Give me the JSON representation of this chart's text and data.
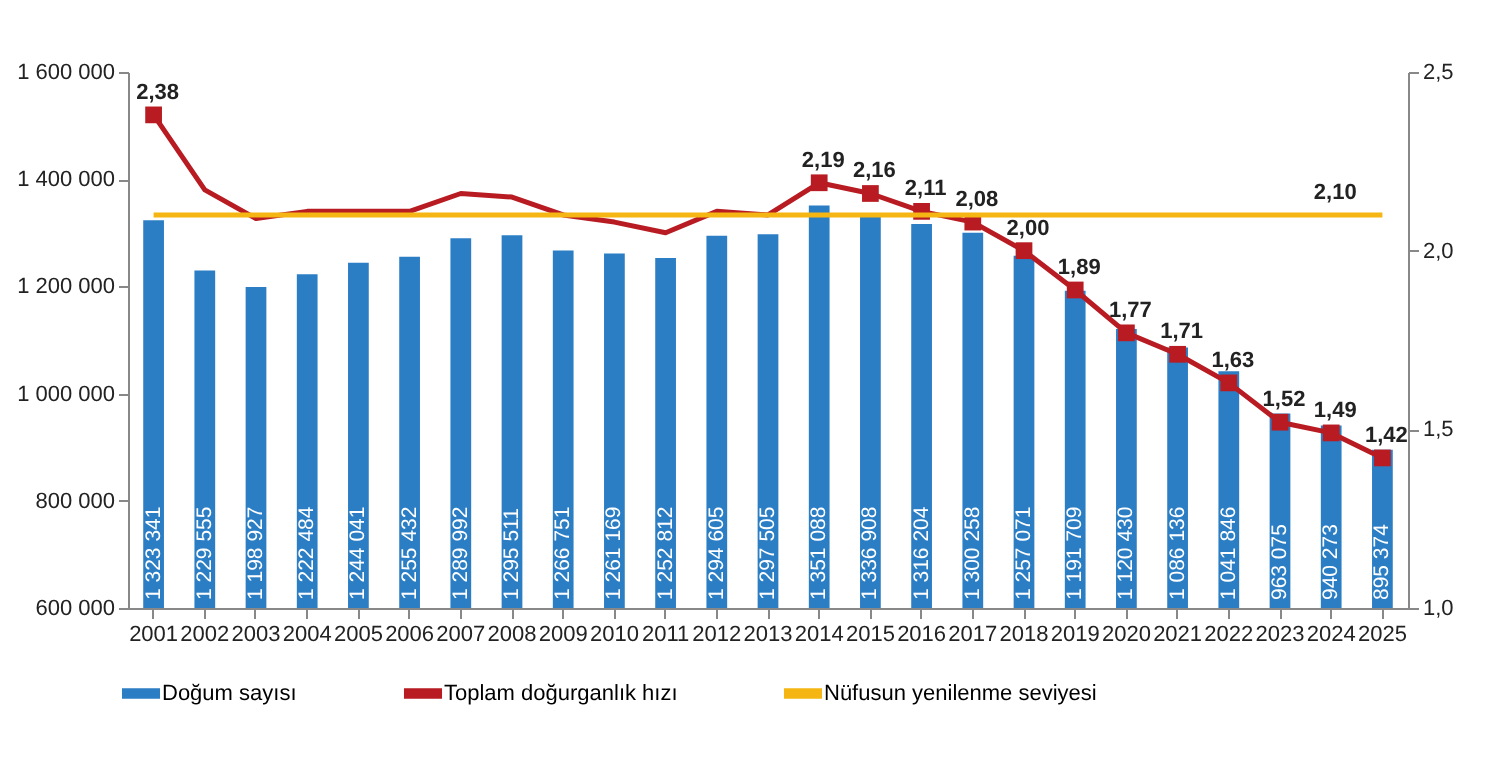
{
  "chart_data": {
    "type": "bar",
    "categories": [
      "2001",
      "2002",
      "2003",
      "2004",
      "2005",
      "2006",
      "2007",
      "2008",
      "2009",
      "2010",
      "2011",
      "2012",
      "2013",
      "2014",
      "2015",
      "2016",
      "2017",
      "2018",
      "2019",
      "2020",
      "2021",
      "2022",
      "2023",
      "2024",
      "2025"
    ],
    "series": [
      {
        "name": "Doğum sayısı",
        "color": "#2b7ec4",
        "values": [
          1323341,
          1229555,
          1198927,
          1222484,
          1244041,
          1255432,
          1289992,
          1295511,
          1266751,
          1261169,
          1252812,
          1294605,
          1297505,
          1351088,
          1336908,
          1316204,
          1300258,
          1257071,
          1191709,
          1120430,
          1086136,
          1041846,
          963075,
          940273,
          895374
        ],
        "value_labels": [
          "1 323 341",
          "1 229 555",
          "1 198 927",
          "1 222 484",
          "1 244 041",
          "1 255 432",
          "1 289 992",
          "1 295 511",
          "1 266 751",
          "1 261 169",
          "1 252 812",
          "1 294 605",
          "1 297 505",
          "1 351 088",
          "1 336 908",
          "1 316 204",
          "1 300 258",
          "1 257 071",
          "1 191 709",
          "1 120 430",
          "1 086 136",
          "1 041 846",
          "963 075",
          "940 273",
          "895 374"
        ]
      },
      {
        "name": "Toplam doğurganlık hızı",
        "type": "line",
        "axis": "y2",
        "marker": "square",
        "color": "#b81c22",
        "values": [
          2.38,
          2.17,
          2.09,
          2.11,
          2.11,
          2.11,
          2.16,
          2.15,
          2.1,
          2.08,
          2.05,
          2.11,
          2.1,
          2.19,
          2.16,
          2.11,
          2.08,
          2.0,
          1.89,
          1.77,
          1.71,
          1.63,
          1.52,
          1.49,
          1.42
        ],
        "value_labels": [
          "2,38",
          null,
          null,
          null,
          null,
          null,
          null,
          null,
          null,
          null,
          null,
          null,
          null,
          "2,19",
          "2,16",
          "2,11",
          "2,08",
          "2,00",
          "1,89",
          "1,77",
          "1,71",
          "1,63",
          "1,52",
          "1,49",
          "1,42"
        ]
      },
      {
        "name": "Nüfusun yenilenme seviyesi",
        "type": "line",
        "axis": "y2",
        "color": "#f5b614",
        "values": [
          2.1,
          2.1,
          2.1,
          2.1,
          2.1,
          2.1,
          2.1,
          2.1,
          2.1,
          2.1,
          2.1,
          2.1,
          2.1,
          2.1,
          2.1,
          2.1,
          2.1,
          2.1,
          2.1,
          2.1,
          2.1,
          2.1,
          2.1,
          2.1,
          2.1
        ],
        "value_labels": [
          null,
          null,
          null,
          null,
          null,
          null,
          null,
          null,
          null,
          null,
          null,
          null,
          null,
          null,
          null,
          null,
          null,
          null,
          null,
          null,
          null,
          null,
          null,
          "2,10",
          null
        ]
      }
    ],
    "ylim": [
      600000,
      1600000
    ],
    "yticks": [
      {
        "value": 600000,
        "label": "600 000"
      },
      {
        "value": 800000,
        "label": "800 000"
      },
      {
        "value": 1000000,
        "label": "1 000 000"
      },
      {
        "value": 1200000,
        "label": "1 200 000"
      },
      {
        "value": 1400000,
        "label": "1 400 000"
      },
      {
        "value": 1600000,
        "label": "1 600 000"
      }
    ],
    "y2lim": [
      1.0,
      2.5
    ],
    "y2ticks": [
      {
        "value": 1.0,
        "label": "1,0"
      },
      {
        "value": 1.5,
        "label": "1,5"
      },
      {
        "value": 2.0,
        "label": "2,0"
      },
      {
        "value": 2.5,
        "label": "2,5"
      }
    ],
    "grid": false,
    "legend": "bottom"
  }
}
